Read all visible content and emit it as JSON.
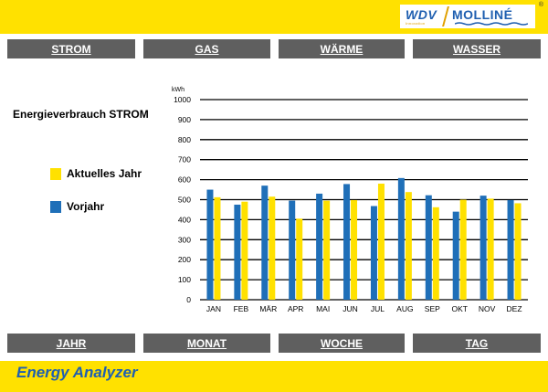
{
  "logo": {
    "brand_left": "WDV",
    "brand_right": "MOLLINÉ",
    "registered": "®",
    "tagline": "Innovation"
  },
  "nav_top": [
    "STROM",
    "GAS",
    "WÄRME",
    "WASSER"
  ],
  "nav_bottom": [
    "JAHR",
    "MONAT",
    "WOCHE",
    "TAG"
  ],
  "chart_title": "Energieverbrauch STROM",
  "legend": {
    "current": "Aktuelles Jahr",
    "previous": "Vorjahr"
  },
  "footer_title": "Energy Analyzer",
  "colors": {
    "yellow": "#ffe100",
    "blue": "#1f6fb8",
    "button": "#5f5f5f",
    "grid": "#000000"
  },
  "chart_data": {
    "type": "bar",
    "ylabel": "kWh",
    "ylim": [
      0,
      1000
    ],
    "yticks": [
      0,
      100,
      200,
      300,
      400,
      500,
      600,
      700,
      800,
      900,
      1000
    ],
    "categories": [
      "JAN",
      "FEB",
      "MÄR",
      "APR",
      "MAI",
      "JUN",
      "JUL",
      "AUG",
      "SEP",
      "OKT",
      "NOV",
      "DEZ"
    ],
    "series": [
      {
        "name": "Vorjahr",
        "color": "#1f6fb8",
        "values": [
          550,
          475,
          570,
          495,
          530,
          578,
          468,
          608,
          522,
          440,
          520,
          498
        ]
      },
      {
        "name": "Aktuelles Jahr",
        "color": "#ffe100",
        "values": [
          512,
          490,
          515,
          405,
          495,
          498,
          580,
          538,
          462,
          500,
          505,
          482
        ]
      }
    ],
    "grid": true,
    "legend_position": "left"
  }
}
